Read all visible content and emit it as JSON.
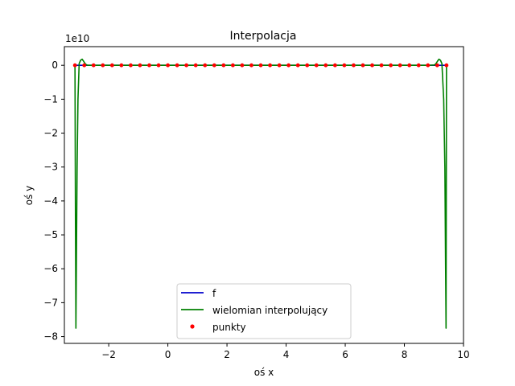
{
  "chart_data": {
    "type": "line",
    "title": "Interpolacja",
    "xlabel": "oś x",
    "ylabel": "oś y",
    "y_offset_label": "1e10",
    "y_scale": 10000000000,
    "xlim": [
      -3.5,
      10.0
    ],
    "ylim": [
      -8.2,
      0.55
    ],
    "xticks": [
      -2,
      0,
      2,
      4,
      6,
      8,
      10
    ],
    "xtick_labels": [
      "−2",
      "0",
      "2",
      "4",
      "6",
      "8",
      "10"
    ],
    "yticks": [
      0,
      -1,
      -2,
      -3,
      -4,
      -5,
      -6,
      -7,
      -8
    ],
    "ytick_labels": [
      "0",
      "−1",
      "−2",
      "−3",
      "−4",
      "−5",
      "−6",
      "−7",
      "−8"
    ],
    "grid": false,
    "legend_position": "lower center",
    "series": [
      {
        "name": "f",
        "kind": "line",
        "color": "#0000cc",
        "x": [
          -3.1416,
          9.4248
        ],
        "y": [
          0,
          0
        ]
      },
      {
        "name": "wielomian interpolujący",
        "kind": "line",
        "color": "#008000",
        "x": [
          -3.1416,
          -3.125,
          -3.11,
          -3.095,
          -3.07,
          -3.04,
          -3.0,
          -2.95,
          -2.9,
          -2.85,
          -2.8,
          -2.75,
          -2.7,
          -2.6,
          -2.4,
          0,
          3.14,
          6.28,
          8.82,
          9.02,
          9.07,
          9.12,
          9.17,
          9.22,
          9.27,
          9.33,
          9.37,
          9.395,
          9.41,
          9.4248
        ],
        "y": [
          0,
          -4.5,
          -7.75,
          -6.0,
          -3.0,
          -1.0,
          0.05,
          0.15,
          0.18,
          0.12,
          0.05,
          0.01,
          0,
          0,
          0,
          0,
          0,
          0,
          0,
          0.01,
          0.05,
          0.12,
          0.18,
          0.15,
          0.05,
          -1.0,
          -3.0,
          -6.0,
          -7.75,
          0
        ]
      },
      {
        "name": "punkty",
        "kind": "scatter",
        "color": "#ff0000",
        "x_start": -3.1416,
        "x_end": 9.4248,
        "count": 41,
        "y": 0
      }
    ]
  }
}
